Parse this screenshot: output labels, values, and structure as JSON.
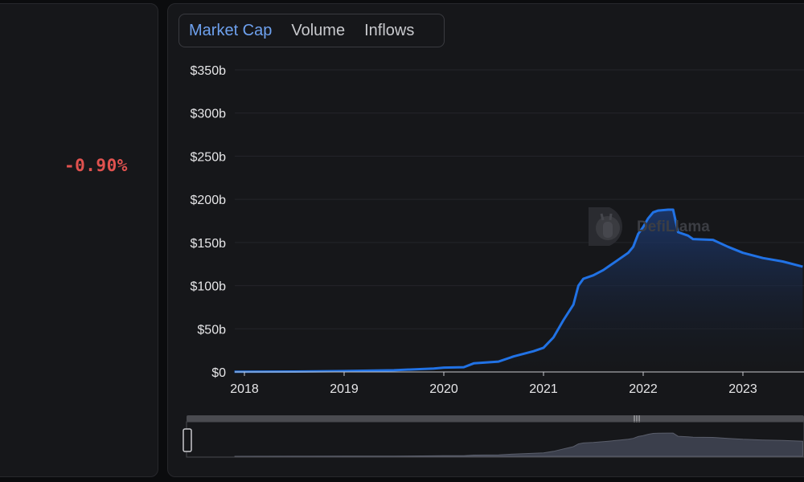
{
  "summary": {
    "change": "-0.90%"
  },
  "tabs": [
    {
      "label": "Market Cap",
      "active": true
    },
    {
      "label": "Volume",
      "active": false
    },
    {
      "label": "Inflows",
      "active": false
    }
  ],
  "watermark": {
    "text": "DefiLlama"
  },
  "colors": {
    "line": "#2172e5",
    "negative": "#e0524f",
    "background": "#16171a",
    "accent": "#6ea1ee"
  },
  "chart_data": {
    "type": "area",
    "title": "",
    "xlabel": "",
    "ylabel": "",
    "xlim": [
      2017.9,
      2023.6
    ],
    "ylim": [
      0,
      350
    ],
    "yticks": [
      0,
      50,
      100,
      150,
      200,
      250,
      300,
      350
    ],
    "ytick_labels": [
      "$0",
      "$50b",
      "$100b",
      "$150b",
      "$200b",
      "$250b",
      "$300b",
      "$350b"
    ],
    "xticks": [
      2018,
      2019,
      2020,
      2021,
      2022,
      2023
    ],
    "xtick_labels": [
      "2018",
      "2019",
      "2020",
      "2021",
      "2022",
      "2023"
    ],
    "grid": true,
    "series": [
      {
        "x": [
          2017.9,
          2018.5,
          2019.0,
          2019.5,
          2019.9,
          2020.0,
          2020.2,
          2020.3,
          2020.55,
          2020.7,
          2020.9,
          2021.0,
          2021.1,
          2021.2,
          2021.3,
          2021.35,
          2021.4,
          2021.5,
          2021.6,
          2021.65,
          2021.75,
          2021.85,
          2021.9,
          2021.95,
          2022.0,
          2022.05,
          2022.1,
          2022.15,
          2022.25,
          2022.3,
          2022.35,
          2022.45,
          2022.5,
          2022.7,
          2022.85,
          2023.0,
          2023.2,
          2023.4,
          2023.6
        ],
        "values": [
          0.3,
          0.5,
          1,
          2,
          4,
          5,
          5.5,
          10,
          12,
          18,
          24,
          28,
          40,
          60,
          78,
          100,
          108,
          112,
          118,
          122,
          130,
          138,
          145,
          160,
          168,
          178,
          185,
          187,
          188,
          188,
          162,
          158,
          154,
          153,
          145,
          138,
          132,
          128,
          122
        ]
      }
    ]
  }
}
